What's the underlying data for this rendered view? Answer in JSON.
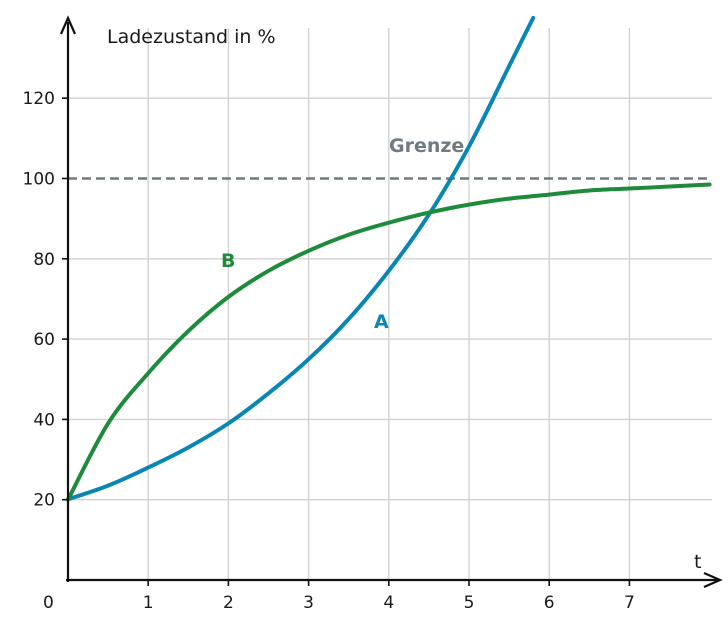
{
  "chart_data": {
    "type": "line",
    "title": "",
    "ylabel": "Ladezustand in %",
    "xlabel": "t",
    "origin_label": "0",
    "xlim": [
      0,
      8
    ],
    "ylim": [
      0,
      140
    ],
    "x_ticks": [
      1,
      2,
      3,
      4,
      5,
      6,
      7
    ],
    "y_ticks": [
      20,
      40,
      60,
      80,
      100,
      120
    ],
    "grid": true,
    "colors": {
      "A": "#0a86b4",
      "B": "#1e8a3b",
      "limit": "#6f7b80",
      "grid": "#d2d2d2",
      "axis": "#111111"
    },
    "limit": {
      "label": "Grenze",
      "value": 100
    },
    "series": [
      {
        "name": "A",
        "x": [
          0,
          0.5,
          1,
          1.5,
          2,
          2.5,
          3,
          3.5,
          4,
          4.5,
          5,
          5.5,
          5.8
        ],
        "values": [
          20.1,
          23.5,
          28,
          33,
          39,
          46.5,
          55,
          65,
          77,
          91,
          108,
          128,
          140
        ]
      },
      {
        "name": "B",
        "x": [
          0,
          0.5,
          1,
          1.5,
          2,
          2.5,
          3,
          3.5,
          4,
          4.5,
          5,
          5.5,
          6,
          6.5,
          7,
          7.5,
          8
        ],
        "values": [
          20,
          39,
          51.5,
          62,
          70.5,
          77,
          82,
          86,
          89,
          91.5,
          93.5,
          95,
          96,
          97,
          97.5,
          98,
          98.5
        ]
      }
    ]
  }
}
